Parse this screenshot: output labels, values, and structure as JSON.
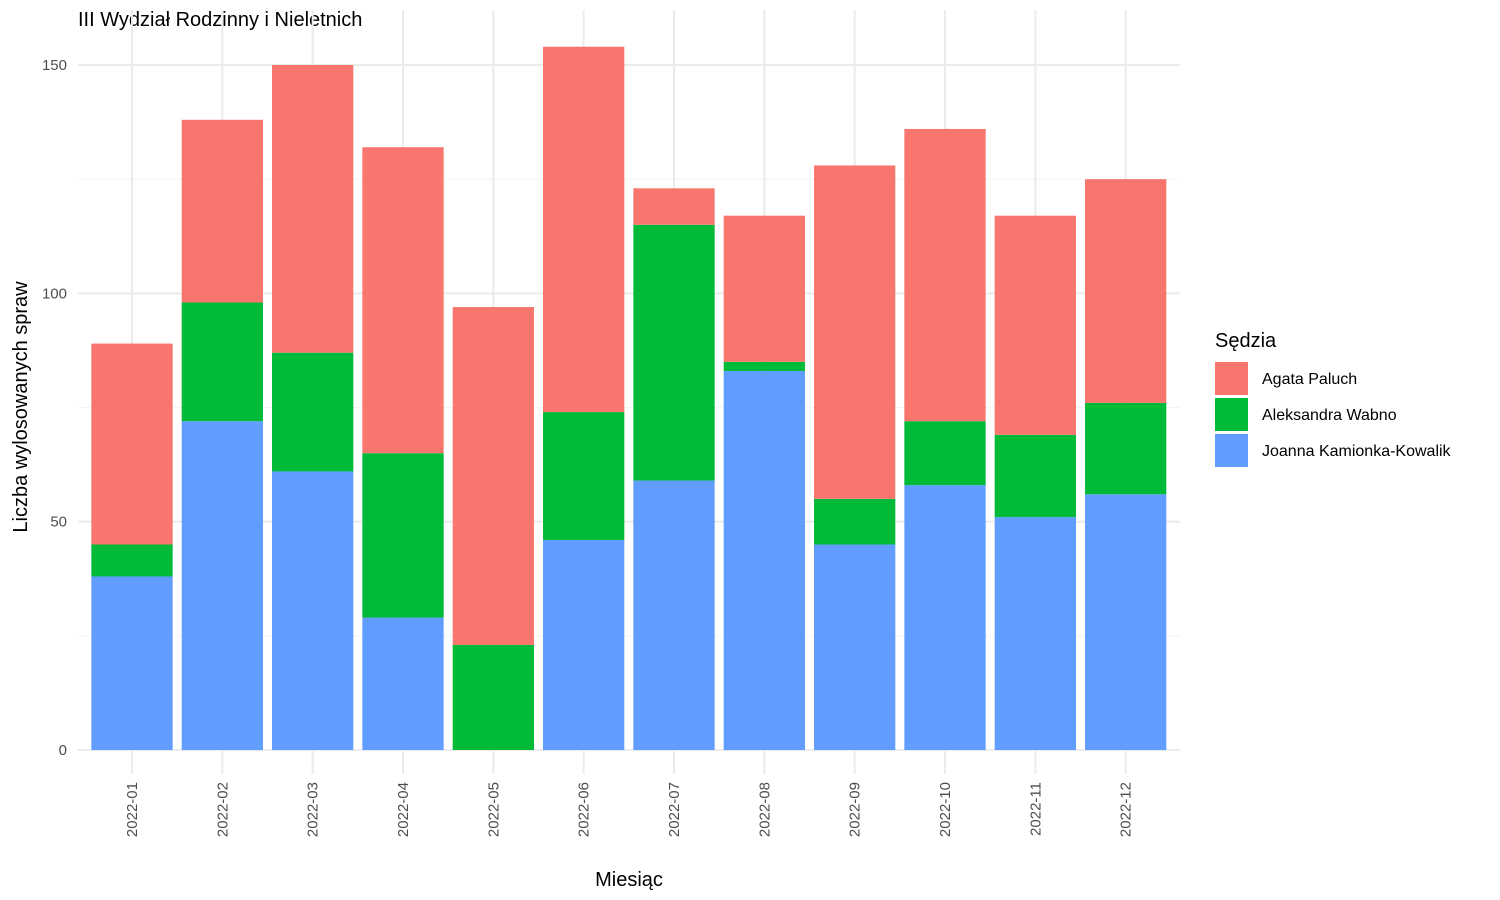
{
  "chart_data": {
    "type": "bar",
    "stacked": true,
    "title": "III Wydział Rodzinny i Nieletnich",
    "xlabel": "Miesiąc",
    "ylabel": "Liczba wylosowanych spraw",
    "ylim": [
      0,
      160
    ],
    "yticks": [
      0,
      50,
      100,
      150
    ],
    "grid": true,
    "legend": {
      "title": "Sędzia",
      "position": "right"
    },
    "categories": [
      "2022-01",
      "2022-02",
      "2022-03",
      "2022-04",
      "2022-05",
      "2022-06",
      "2022-07",
      "2022-08",
      "2022-09",
      "2022-10",
      "2022-11",
      "2022-12"
    ],
    "series": [
      {
        "name": "Joanna Kamionka-Kowalik",
        "color": "#619CFF",
        "values": [
          38,
          72,
          61,
          29,
          0,
          46,
          59,
          83,
          45,
          58,
          51,
          56
        ]
      },
      {
        "name": "Aleksandra Wabno",
        "color": "#00BA38",
        "values": [
          7,
          26,
          26,
          36,
          23,
          28,
          56,
          2,
          10,
          14,
          18,
          20
        ]
      },
      {
        "name": "Agata Paluch",
        "color": "#F8766D",
        "values": [
          44,
          40,
          63,
          67,
          74,
          80,
          8,
          32,
          73,
          64,
          48,
          49
        ]
      }
    ],
    "legend_order": [
      "Agata Paluch",
      "Aleksandra Wabno",
      "Joanna Kamionka-Kowalik"
    ]
  }
}
